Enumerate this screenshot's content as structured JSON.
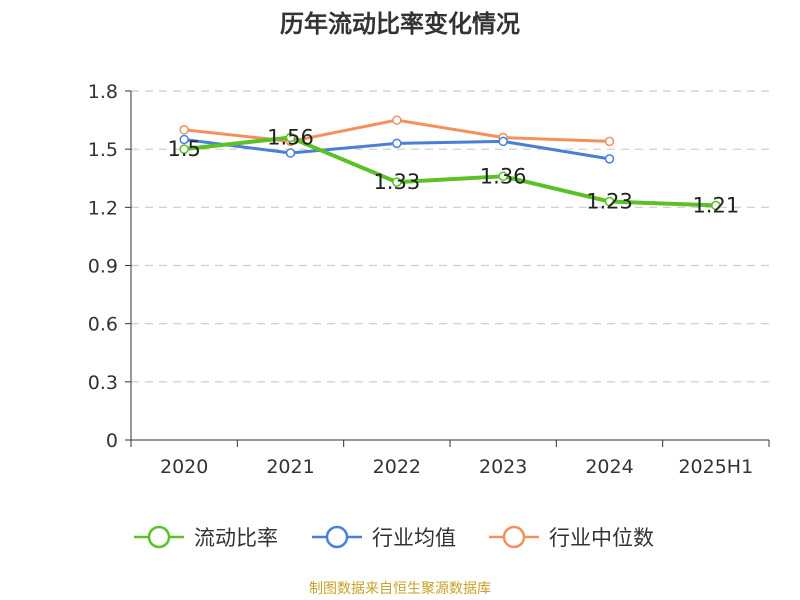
{
  "title": "历年流动比率变化情况",
  "source": "制图数据来自恒生聚源数据库",
  "chart_data": {
    "type": "line",
    "title": "历年流动比率变化情况",
    "categories": [
      "2020",
      "2021",
      "2022",
      "2023",
      "2024",
      "2025H1"
    ],
    "ylim": [
      0,
      1.8
    ],
    "yticks": [
      0,
      0.3,
      0.6,
      0.9,
      1.2,
      1.5,
      1.8
    ],
    "ytick_labels": [
      "0",
      "0.3",
      "0.6",
      "0.9",
      "1.2",
      "1.5",
      "1.8"
    ],
    "grid": true,
    "legend_position": "bottom",
    "series": [
      {
        "name": "流动比率",
        "color": "#5bc126",
        "values": [
          1.5,
          1.56,
          1.33,
          1.36,
          1.23,
          1.21
        ],
        "labels": [
          "1.5",
          "1.56",
          "1.33",
          "1.36",
          "1.23",
          "1.21"
        ]
      },
      {
        "name": "行业均值",
        "color": "#4a7fd9",
        "values": [
          1.55,
          1.48,
          1.53,
          1.54,
          1.45,
          null
        ]
      },
      {
        "name": "行业中位数",
        "color": "#f4905a",
        "values": [
          1.6,
          1.54,
          1.65,
          1.56,
          1.54,
          null
        ]
      }
    ]
  }
}
